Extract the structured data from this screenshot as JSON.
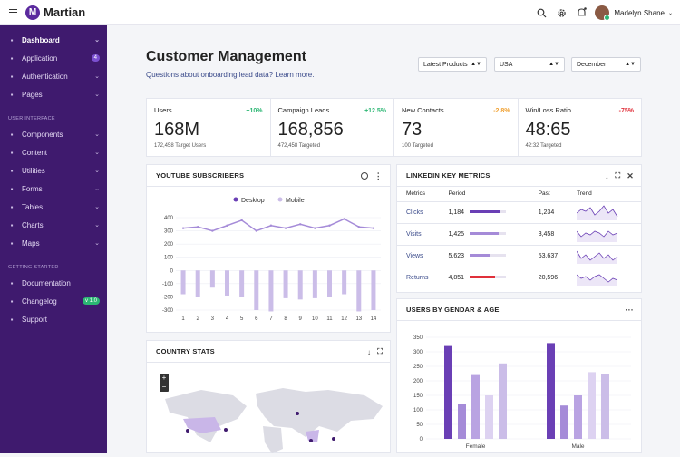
{
  "app": {
    "name": "Martian",
    "logo_letter": "M"
  },
  "topbar": {
    "user_name": "Madelyn Shane"
  },
  "sidebar": {
    "items": [
      {
        "label": "Dashboard",
        "icon": "pulse-icon",
        "active": true,
        "chev": true
      },
      {
        "label": "Application",
        "icon": "document-icon",
        "badge": "4"
      },
      {
        "label": "Authentication",
        "icon": "lock-icon",
        "chev": true
      },
      {
        "label": "Pages",
        "icon": "page-icon",
        "chev": true
      }
    ],
    "section_ui": "USER INTERFACE",
    "ui_items": [
      {
        "label": "Components",
        "icon": "grid-icon",
        "chev": true
      },
      {
        "label": "Content",
        "icon": "file-icon",
        "chev": true
      },
      {
        "label": "Utilities",
        "icon": "anchor-icon",
        "chev": true
      },
      {
        "label": "Forms",
        "icon": "form-icon",
        "chev": true
      },
      {
        "label": "Tables",
        "icon": "table-icon",
        "chev": true
      },
      {
        "label": "Charts",
        "icon": "chart-icon",
        "chev": true
      },
      {
        "label": "Maps",
        "icon": "map-icon",
        "chev": true
      }
    ],
    "section_start": "GETTING STARTED",
    "start_items": [
      {
        "label": "Documentation",
        "icon": "book-icon"
      },
      {
        "label": "Changelog",
        "icon": "eye-icon",
        "badge": "v 1.0"
      },
      {
        "label": "Support",
        "icon": "support-icon"
      }
    ]
  },
  "page": {
    "title": "Customer Management",
    "subtitle": "Questions about onboarding lead data?",
    "subtitle_link": "Learn more.",
    "filters": [
      "Latest Products",
      "USA",
      "December"
    ]
  },
  "stats": [
    {
      "label": "Users",
      "pct": "+10%",
      "pct_color": "#2bb673",
      "value": "168M",
      "note": "172,458 Target Users"
    },
    {
      "label": "Campaign Leads",
      "pct": "+12.5%",
      "pct_color": "#2bb673",
      "value": "168,856",
      "note": "472,458 Targeted"
    },
    {
      "label": "New Contacts",
      "pct": "-2.8%",
      "pct_color": "#f0a030",
      "value": "73",
      "note": "100 Targeted"
    },
    {
      "label": "Win/Loss Ratio",
      "pct": "-75%",
      "pct_color": "#e0303a",
      "value": "48:65",
      "note": "42:32 Targeted"
    }
  ],
  "youtube": {
    "title": "YOUTUBE SUBSCRIBERS"
  },
  "linkedin": {
    "title": "LINKEDIN KEY METRICS",
    "headers": [
      "Metrics",
      "Period",
      "Past",
      "Trend"
    ],
    "rows": [
      {
        "metric": "Clicks",
        "period": "1,184",
        "fill": 0.85,
        "color": "#6a3fb5",
        "past": "1,234",
        "trend": [
          4,
          6,
          5,
          7,
          3,
          5,
          8,
          4,
          6,
          2
        ]
      },
      {
        "metric": "Visits",
        "period": "1,425",
        "fill": 0.8,
        "color": "#a58bd8",
        "past": "3,458",
        "trend": [
          6,
          3,
          5,
          4,
          6,
          5,
          3,
          6,
          4,
          5
        ]
      },
      {
        "metric": "Views",
        "period": "5,623",
        "fill": 0.55,
        "color": "#a58bd8",
        "past": "53,637",
        "trend": [
          7,
          3,
          5,
          2,
          4,
          6,
          3,
          5,
          2,
          4
        ]
      },
      {
        "metric": "Returns",
        "period": "4,851",
        "fill": 0.7,
        "color": "#e0303a",
        "past": "20,596",
        "trend": [
          6,
          4,
          5,
          3,
          5,
          6,
          4,
          2,
          4,
          3
        ]
      }
    ]
  },
  "country": {
    "title": "COUNTRY STATS",
    "zoom_in": "+",
    "zoom_out": "−"
  },
  "gender": {
    "title": "USERS BY GENDAR & AGE",
    "menu": "···"
  },
  "colors": {
    "primary": "#6a3fb5",
    "light": "#a58bd8",
    "lighter": "#cbbde8",
    "sidebar": "#3f1a6e"
  },
  "chart_data": [
    {
      "type": "line",
      "title": "YOUTUBE SUBSCRIBERS",
      "x": [
        1,
        2,
        3,
        4,
        5,
        6,
        7,
        8,
        9,
        10,
        11,
        12,
        13,
        14
      ],
      "series": [
        {
          "name": "Desktop",
          "values": [
            320,
            330,
            300,
            340,
            380,
            300,
            340,
            320,
            350,
            320,
            340,
            390,
            330,
            320
          ]
        },
        {
          "name": "Mobile",
          "values": [
            -180,
            -200,
            -130,
            -190,
            -200,
            -300,
            -310,
            -210,
            -220,
            -210,
            -200,
            -180,
            -310,
            -300
          ]
        }
      ],
      "yticks": [
        400,
        300,
        200,
        100,
        0,
        -100,
        -200,
        -300
      ],
      "ylim": [
        -300,
        400
      ],
      "legend": "top"
    },
    {
      "type": "bar",
      "title": "USERS BY GENDAR & AGE",
      "categories": [
        "Female",
        "Male"
      ],
      "series": [
        {
          "name": "",
          "values": [
            320,
            330
          ]
        },
        {
          "name": "",
          "values": [
            120,
            115
          ]
        },
        {
          "name": "",
          "values": [
            220,
            150
          ]
        },
        {
          "name": "",
          "values": [
            150,
            230
          ]
        },
        {
          "name": "",
          "values": [
            260,
            225
          ]
        }
      ],
      "yticks": [
        350,
        300,
        250,
        200,
        150,
        100,
        50,
        0
      ],
      "ylim": [
        0,
        350
      ]
    }
  ]
}
